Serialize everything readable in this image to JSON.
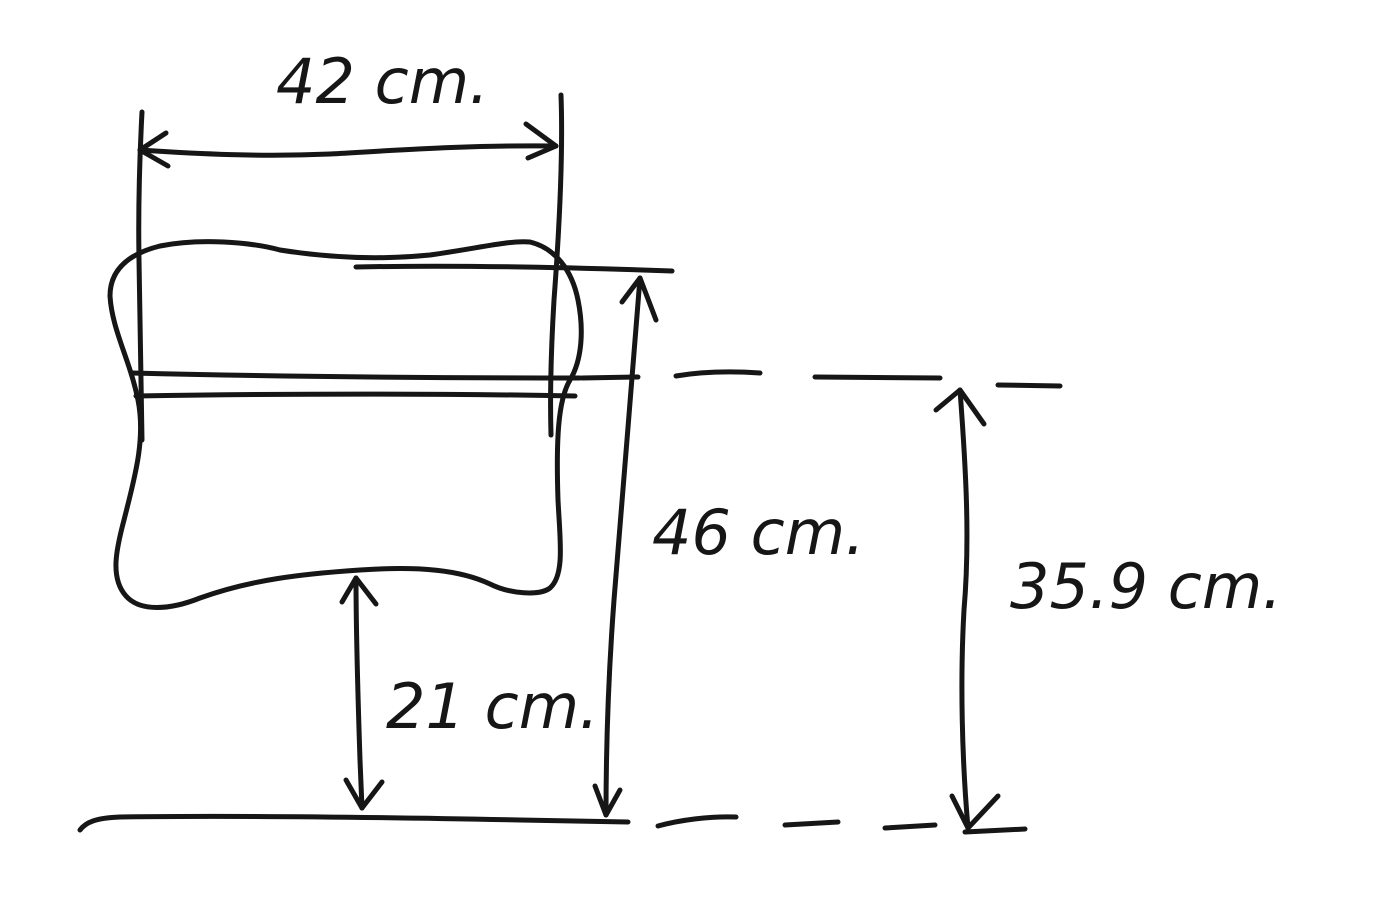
{
  "colors": {
    "ink": "#161616",
    "background": "#ffffff"
  },
  "labels": {
    "width": "42 cm.",
    "height_total": "46 cm.",
    "height_lower": "35.9 cm.",
    "gap_to_floor": "21 cm."
  }
}
